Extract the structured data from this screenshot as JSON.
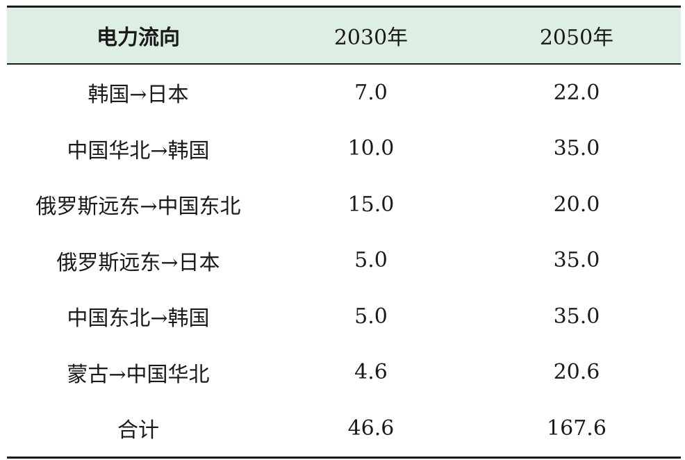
{
  "table": {
    "header_color": "#ddeee2",
    "headers": [
      "电力流向",
      "2030年",
      "2050年"
    ],
    "rows": [
      [
        "韩国→日本",
        "7.0",
        "22.0"
      ],
      [
        "中国华北→韩国",
        "10.0",
        "35.0"
      ],
      [
        "俄罗斯远东→中国东北",
        "15.0",
        "20.0"
      ],
      [
        "俄罗斯远东→日本",
        "5.0",
        "35.0"
      ],
      [
        "中国东北→韩国",
        "5.0",
        "35.0"
      ],
      [
        "蒙古→中国华北",
        "4.6",
        "20.6"
      ],
      [
        "合计",
        "46.6",
        "167.6"
      ]
    ]
  }
}
